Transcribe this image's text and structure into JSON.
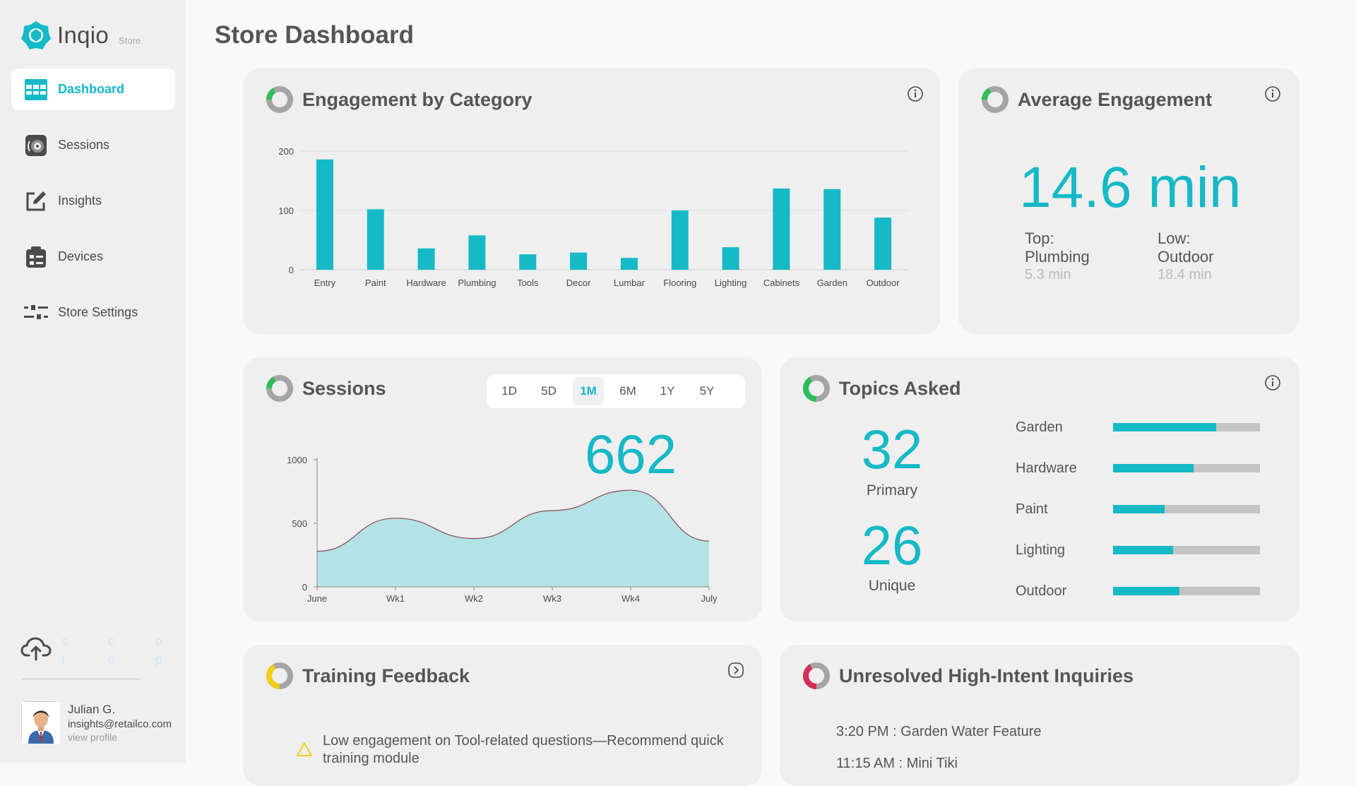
{
  "brand": {
    "name": "Inqio",
    "sub": "Store"
  },
  "nav": [
    {
      "label": "Dashboard",
      "icon": "dashboard-grid-icon",
      "active": true
    },
    {
      "label": "Sessions",
      "icon": "sessions-speaker-icon",
      "active": false
    },
    {
      "label": "Insights",
      "icon": "edit-note-icon",
      "active": false
    },
    {
      "label": "Devices",
      "icon": "devices-clipboard-icon",
      "active": false
    },
    {
      "label": "Store Settings",
      "icon": "sliders-icon",
      "active": false
    }
  ],
  "faint_letters": [
    "s",
    "t",
    "c",
    "o",
    "o",
    "p"
  ],
  "profile": {
    "name": "Julian G.",
    "email": "insights@retailco.com",
    "link": "view profile"
  },
  "page_title": "Store Dashboard",
  "colors": {
    "accent": "#16b9c6",
    "ring_green": "#2ebd5a",
    "ring_yellow": "#f2cf1a",
    "ring_red": "#d42f5b",
    "area_fill": "#b3e3e6",
    "area_stroke": "#8a4a55"
  },
  "engagement": {
    "title": "Engagement by Category",
    "chart_data": {
      "type": "bar",
      "categories": [
        "Entry",
        "Paint",
        "Hardware",
        "Plumbing",
        "Tools",
        "Decor",
        "Lumbar",
        "Flooring",
        "Lighting",
        "Cabinets",
        "Garden",
        "Outdoor"
      ],
      "values": [
        186,
        102,
        36,
        58,
        26,
        29,
        20,
        100,
        38,
        137,
        136,
        88
      ],
      "ylim": [
        0,
        200
      ],
      "yticks": [
        0,
        100,
        200
      ],
      "grid": true
    }
  },
  "avg_engagement": {
    "title": "Average Engagement",
    "value": "14.6 min",
    "top_label": "Top:",
    "top_name": "Plumbing",
    "top_value": "5.3 min",
    "low_label": "Low:",
    "low_name": "Outdoor",
    "low_value": "18.4 min"
  },
  "sessions": {
    "title": "Sessions",
    "ranges": [
      "1D",
      "5D",
      "1M",
      "6M",
      "1Y",
      "5Y"
    ],
    "active_range": "1M",
    "value": "662",
    "chart_data": {
      "type": "area",
      "x": [
        "June",
        "Wk1",
        "Wk2",
        "Wk3",
        "Wk4",
        "July"
      ],
      "values": [
        280,
        540,
        380,
        600,
        760,
        360
      ],
      "ylim": [
        0,
        1000
      ],
      "yticks": [
        0,
        500,
        1000
      ]
    }
  },
  "topics": {
    "title": "Topics Asked",
    "primary_value": "32",
    "primary_label": "Primary",
    "unique_value": "26",
    "unique_label": "Unique",
    "items": [
      {
        "name": "Garden",
        "fraction": 0.7
      },
      {
        "name": "Hardware",
        "fraction": 0.55
      },
      {
        "name": "Paint",
        "fraction": 0.35
      },
      {
        "name": "Lighting",
        "fraction": 0.41
      },
      {
        "name": "Outdoor",
        "fraction": 0.45
      }
    ]
  },
  "training": {
    "title": "Training Feedback",
    "message": "Low engagement on Tool-related questions—Recommend quick training module"
  },
  "inquiries": {
    "title": "Unresolved High-Intent Inquiries",
    "items": [
      "3:20 PM : Garden Water Feature",
      "11:15 AM : Mini Tiki"
    ]
  }
}
